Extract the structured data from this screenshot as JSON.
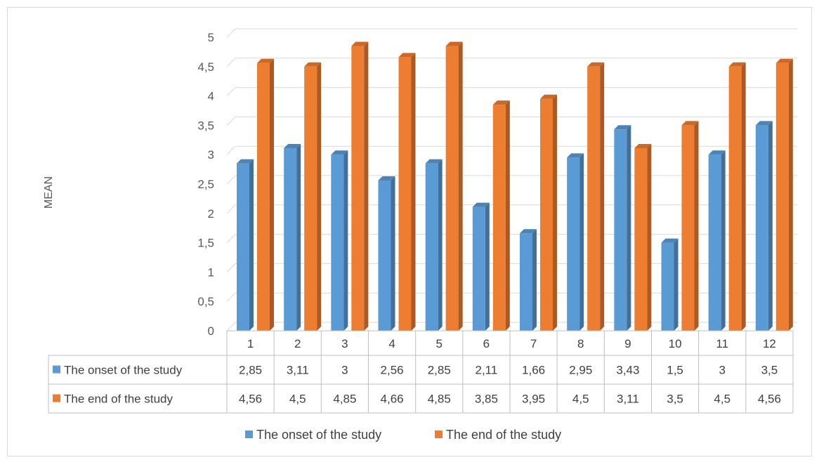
{
  "chart_data": {
    "type": "bar",
    "title": "",
    "xlabel": "",
    "ylabel": "MEAN",
    "ylim": [
      0,
      5
    ],
    "yticks": [
      "0",
      "0,5",
      "1",
      "1,5",
      "2",
      "2,5",
      "3",
      "3,5",
      "4",
      "4,5",
      "5"
    ],
    "categories": [
      "1",
      "2",
      "3",
      "4",
      "5",
      "6",
      "7",
      "8",
      "9",
      "10",
      "11",
      "12"
    ],
    "series": [
      {
        "name": "The onset of the study",
        "color": "#5B9BD5",
        "values": [
          2.85,
          3.11,
          3,
          2.56,
          2.85,
          2.11,
          1.66,
          2.95,
          3.43,
          1.5,
          3,
          3.5
        ],
        "labels": [
          "2,85",
          "3,11",
          "3",
          "2,56",
          "2,85",
          "2,11",
          "1,66",
          "2,95",
          "3,43",
          "1,5",
          "3",
          "3,5"
        ]
      },
      {
        "name": "The end of the study",
        "color": "#ED7D31",
        "values": [
          4.56,
          4.5,
          4.85,
          4.66,
          4.85,
          3.85,
          3.95,
          4.5,
          3.11,
          3.5,
          4.5,
          4.56
        ],
        "labels": [
          "4,56",
          "4,5",
          "4,85",
          "4,66",
          "4,85",
          "3,85",
          "3,95",
          "4,5",
          "3,11",
          "3,5",
          "4,5",
          "4,56"
        ]
      }
    ],
    "grid": true,
    "legend": "bottom",
    "data_table": true
  }
}
